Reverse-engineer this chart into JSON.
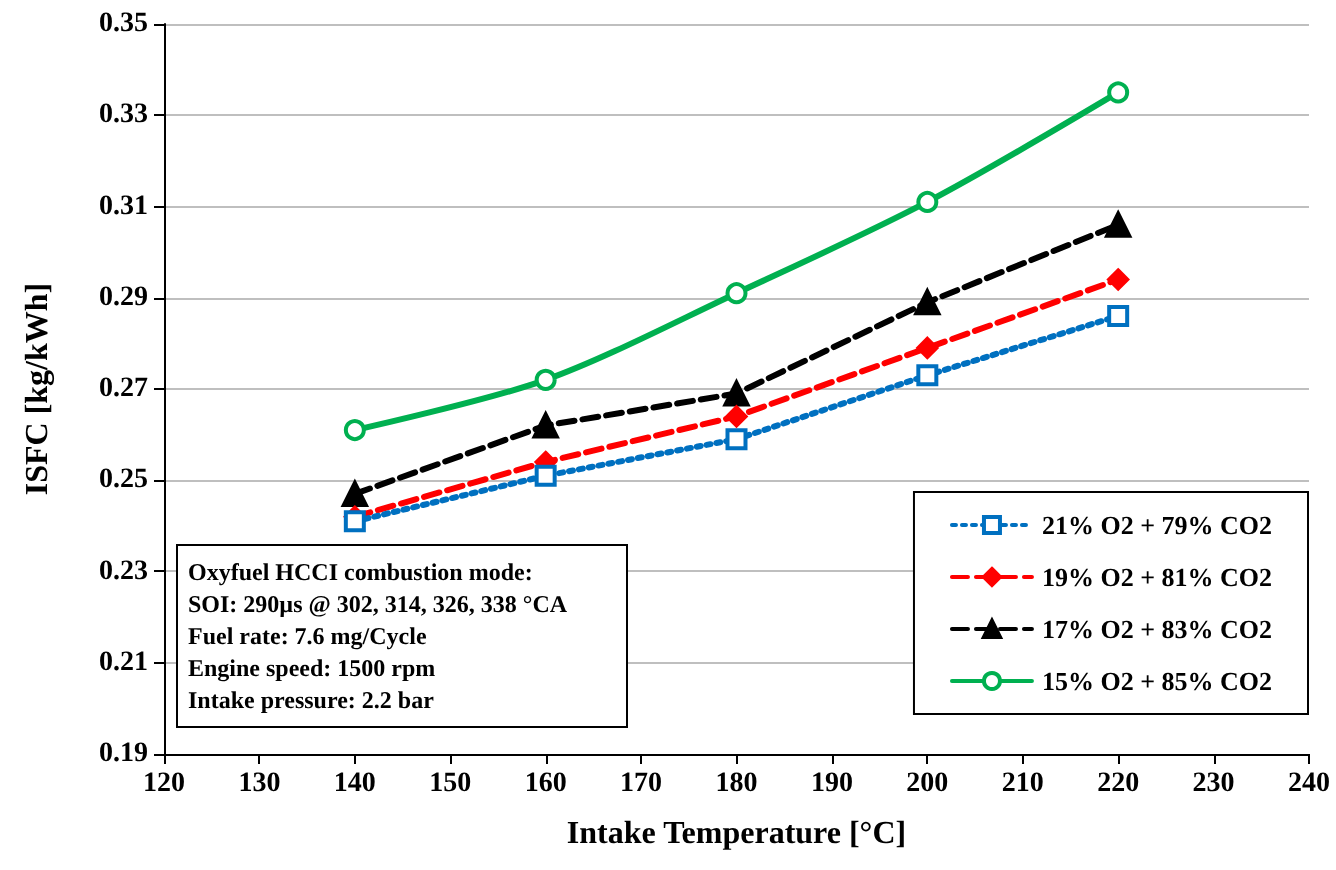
{
  "chart_data": {
    "type": "line",
    "xlabel": "Intake Temperature [°C]",
    "ylabel": "ISFC [kg/kWh]",
    "x": [
      140,
      160,
      180,
      200,
      220
    ],
    "series": [
      {
        "name": "21% O2 + 79% CO2",
        "color": "#0070c0",
        "marker": "square",
        "line_style": "dotted",
        "values": [
          0.241,
          0.251,
          0.259,
          0.273,
          0.286
        ]
      },
      {
        "name": "19% O2 + 81% CO2",
        "color": "#ff0000",
        "marker": "diamond",
        "line_style": "dashed",
        "values": [
          0.242,
          0.254,
          0.264,
          0.279,
          0.294
        ]
      },
      {
        "name": "17% O2 + 83% CO2",
        "color": "#000000",
        "marker": "triangle",
        "line_style": "dashed",
        "values": [
          0.247,
          0.262,
          0.269,
          0.289,
          0.306
        ]
      },
      {
        "name": "15% O2 + 85% CO2",
        "color": "#00b050",
        "marker": "circle",
        "line_style": "solid",
        "values": [
          0.261,
          0.272,
          0.291,
          0.311,
          0.335
        ]
      }
    ],
    "xlim": [
      120,
      240
    ],
    "xticks": [
      120,
      130,
      140,
      150,
      160,
      170,
      180,
      190,
      200,
      210,
      220,
      230,
      240
    ],
    "ylim": [
      0.19,
      0.35
    ],
    "yticks": [
      0.19,
      0.21,
      0.23,
      0.25,
      0.27,
      0.29,
      0.31,
      0.33,
      0.35
    ],
    "grid": "y",
    "legend": "bottom right",
    "annotations": [
      "Oxyfuel HCCI combustion mode:",
      "SOI: 290µs @ 302, 314, 326, 338 °CA",
      "Fuel rate: 7.6 mg/Cycle",
      "Engine speed: 1500 rpm",
      "Intake pressure: 2.2 bar"
    ]
  }
}
